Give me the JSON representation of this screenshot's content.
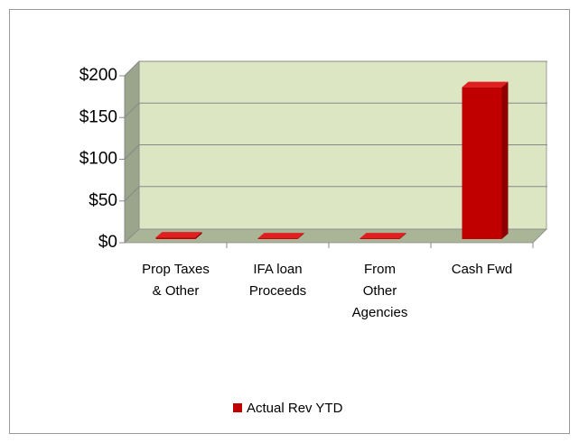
{
  "chart_data": {
    "type": "bar3d",
    "categories": [
      "Prop Taxes & Other",
      "IFA loan Proceeds",
      "From Other Agencies",
      "Cash Fwd"
    ],
    "series": [
      {
        "name": "Actual Rev YTD",
        "color": "#c00000",
        "values": [
          2,
          1,
          1,
          182
        ]
      }
    ],
    "ylim": [
      0,
      200
    ],
    "yticks": [
      {
        "value": 0,
        "label": "$0"
      },
      {
        "value": 50,
        "label": "$50"
      },
      {
        "value": 100,
        "label": "$100"
      },
      {
        "value": 150,
        "label": "$150"
      },
      {
        "value": 200,
        "label": "$200"
      }
    ],
    "grid": true,
    "legend": "bottom"
  }
}
